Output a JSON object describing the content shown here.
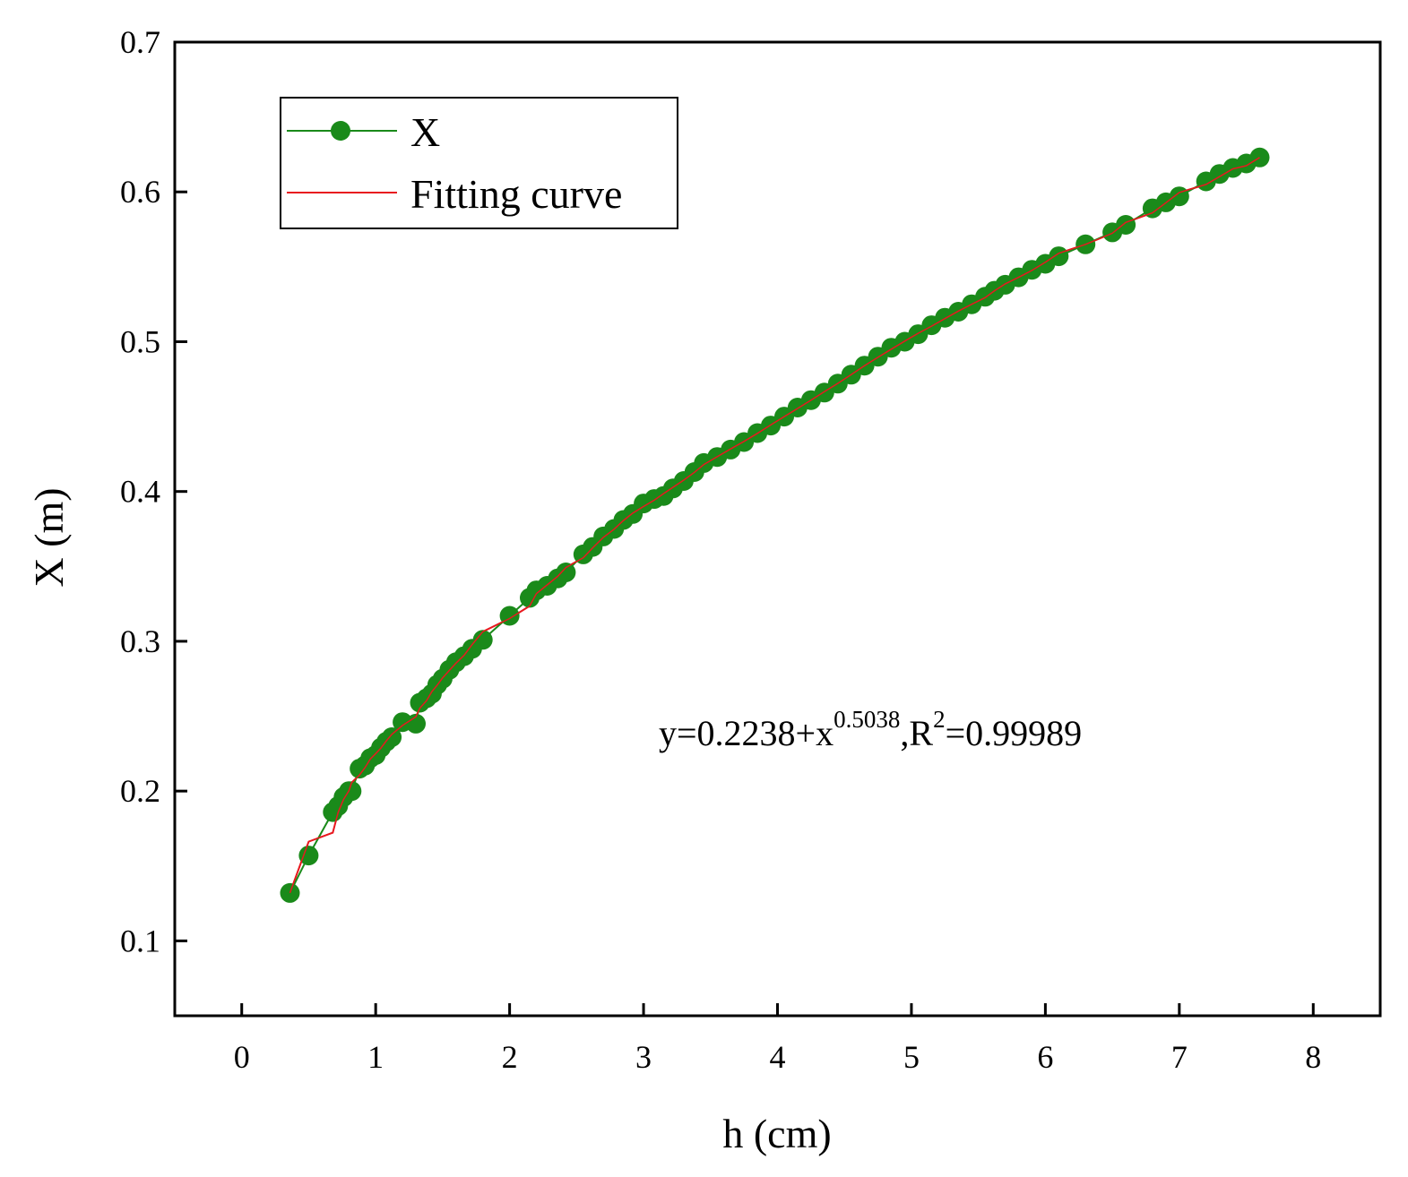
{
  "chart_data": {
    "type": "scatter",
    "title": "",
    "xlabel": "h (cm)",
    "ylabel": "X (m)",
    "xlim": [
      -0.5,
      8.5
    ],
    "ylim": [
      0.05,
      0.7
    ],
    "xticks": [
      "0",
      "1",
      "2",
      "3",
      "4",
      "5",
      "6",
      "7",
      "8"
    ],
    "yticks": [
      "0.1",
      "0.2",
      "0.3",
      "0.4",
      "0.5",
      "0.6",
      "0.7"
    ],
    "grid": false,
    "legend_position": "top-left",
    "series": [
      {
        "name": "X",
        "kind": "line-with-markers",
        "color": "#1a8a1a",
        "x": [
          0.36,
          0.5,
          0.68,
          0.72,
          0.76,
          0.8,
          0.82,
          0.88,
          0.92,
          0.96,
          1.0,
          1.04,
          1.08,
          1.12,
          1.2,
          1.3,
          1.33,
          1.38,
          1.42,
          1.46,
          1.5,
          1.55,
          1.6,
          1.66,
          1.72,
          1.8,
          2.0,
          2.15,
          2.2,
          2.28,
          2.36,
          2.42,
          2.55,
          2.62,
          2.7,
          2.78,
          2.85,
          2.92,
          3.0,
          3.08,
          3.15,
          3.22,
          3.3,
          3.38,
          3.45,
          3.55,
          3.65,
          3.75,
          3.85,
          3.95,
          4.05,
          4.15,
          4.25,
          4.35,
          4.45,
          4.55,
          4.65,
          4.75,
          4.85,
          4.95,
          5.05,
          5.15,
          5.25,
          5.35,
          5.45,
          5.55,
          5.62,
          5.7,
          5.8,
          5.9,
          6.0,
          6.1,
          6.3,
          6.5,
          6.6,
          6.8,
          6.9,
          7.0,
          7.2,
          7.3,
          7.4,
          7.5,
          7.6
        ],
        "y": [
          0.132,
          0.157,
          0.186,
          0.19,
          0.196,
          0.2,
          0.2,
          0.215,
          0.217,
          0.222,
          0.224,
          0.229,
          0.233,
          0.236,
          0.246,
          0.245,
          0.259,
          0.262,
          0.265,
          0.271,
          0.275,
          0.281,
          0.286,
          0.29,
          0.295,
          0.301,
          0.317,
          0.329,
          0.334,
          0.337,
          0.342,
          0.346,
          0.358,
          0.363,
          0.37,
          0.375,
          0.381,
          0.385,
          0.392,
          0.395,
          0.397,
          0.402,
          0.407,
          0.413,
          0.419,
          0.423,
          0.428,
          0.433,
          0.439,
          0.444,
          0.45,
          0.456,
          0.461,
          0.466,
          0.472,
          0.478,
          0.484,
          0.49,
          0.496,
          0.5,
          0.505,
          0.511,
          0.516,
          0.52,
          0.525,
          0.53,
          0.534,
          0.538,
          0.543,
          0.548,
          0.552,
          0.557,
          0.565,
          0.573,
          0.578,
          0.589,
          0.593,
          0.597,
          0.607,
          0.612,
          0.616,
          0.619,
          0.623
        ]
      },
      {
        "name": "Fitting curve",
        "kind": "line",
        "color": "#e8191f",
        "fit": {
          "a": 0.2238,
          "b": 0.5038,
          "x_from": 0.36,
          "x_to": 7.6
        }
      }
    ],
    "annotation": {
      "prefix": "y=0.2238+x",
      "exponent": "0.5038",
      "middle": ",R",
      "r_exponent": "2",
      "suffix": "=0.99989"
    }
  },
  "colors": {
    "marker": "#1a8a1a",
    "fit": "#e8191f",
    "axis": "#000000"
  }
}
